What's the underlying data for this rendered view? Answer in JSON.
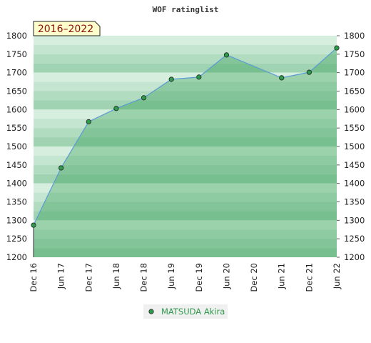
{
  "chart_data": {
    "type": "area",
    "title": "WOF ratinglist",
    "period_badge": "2016–2022",
    "categories": [
      "Dec 16",
      "Jun 17",
      "Dec 17",
      "Jun 18",
      "Dec 18",
      "Jun 19",
      "Dec 19",
      "Jun 20",
      "Dec 20",
      "Jun 21",
      "Dec 21",
      "Jun 22"
    ],
    "series": [
      {
        "name": "MATSUDA Akira",
        "color": "#2e9a4c",
        "points": [
          {
            "x": "Dec 16",
            "y": 1287
          },
          {
            "x": "Jun 17",
            "y": 1442
          },
          {
            "x": "Dec 17",
            "y": 1567
          },
          {
            "x": "Jun 18",
            "y": 1603
          },
          {
            "x": "Dec 18",
            "y": 1632
          },
          {
            "x": "Jun 19",
            "y": 1682
          },
          {
            "x": "Dec 19",
            "y": 1688
          },
          {
            "x": "Jun 20",
            "y": 1748
          },
          {
            "x": "Jun 21",
            "y": 1686
          },
          {
            "x": "Dec 21",
            "y": 1701
          },
          {
            "x": "Jun 22",
            "y": 1767
          }
        ]
      }
    ],
    "ylim": [
      1200,
      1800
    ],
    "yticks": [
      1200,
      1250,
      1300,
      1350,
      1400,
      1450,
      1500,
      1550,
      1600,
      1650,
      1700,
      1750,
      1800
    ],
    "y_axis_both_sides": true,
    "grid": false,
    "legend": "bottom-center",
    "line_color": "#5b9bd5",
    "badge_bg": "#ffffcc"
  }
}
